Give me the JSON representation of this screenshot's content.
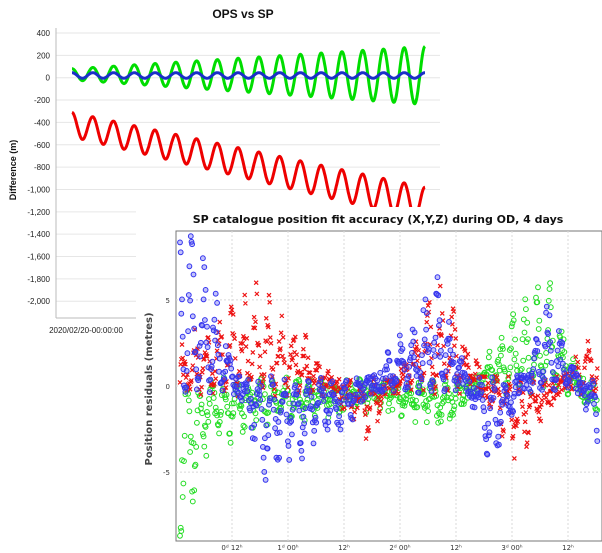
{
  "chart_data": [
    {
      "type": "line",
      "title": "OPS vs SP",
      "ylabel": "Difference (m)",
      "xlabel": "",
      "ylim": [
        -2150,
        400
      ],
      "y_ticks": [
        400,
        200,
        0,
        -200,
        -400,
        -600,
        -800,
        -1000,
        -1200,
        -1400,
        -1600,
        -1800,
        -2000
      ],
      "y_tick_labels": [
        "400",
        "200",
        "0",
        "-200",
        "-400",
        "-600",
        "-800",
        "-1,000",
        "-1,200",
        "-1,400",
        "-1,600",
        "-1,800",
        "-2,000"
      ],
      "x_tick_labels": [
        "2020/02/20-00:00:00"
      ],
      "grid": true,
      "series": [
        {
          "color": "#00dd00",
          "cycles": 17,
          "amplitude_start": 50,
          "amplitude_end": 260,
          "offset_start": 30,
          "offset_end": 20
        },
        {
          "color": "#1a2fc8",
          "cycles": 17,
          "amplitude_start": 25,
          "amplitude_end": 25,
          "offset_start": 20,
          "offset_end": 20
        },
        {
          "color": "#ee0000",
          "cycles": 17,
          "amplitude_start": 110,
          "amplitude_end": 150,
          "offset_start": -420,
          "offset_end": -1130
        }
      ]
    },
    {
      "type": "scatter",
      "title": "SP catalogue position fit accuracy (X,Y,Z) during OD, 4 days",
      "ylabel": "Position residuals (metres)",
      "ylim": [
        -9,
        9
      ],
      "y_ticks": [
        5,
        0,
        -5
      ],
      "y_tick_labels": [
        "5",
        "0",
        "-5"
      ],
      "x_tick_labels": [
        "0ᵈ 12ʰ",
        "1ᵈ 00ʰ",
        "12ʰ",
        "2ᵈ 00ʰ",
        "12ʰ",
        "3ᵈ 00ʰ",
        "12ʰ"
      ],
      "grid": true,
      "series": [
        {
          "color": "#22dd22",
          "marker": "circle"
        },
        {
          "color": "#ee1111",
          "marker": "x"
        },
        {
          "color": "#3333ee",
          "marker": "circle"
        }
      ]
    }
  ]
}
